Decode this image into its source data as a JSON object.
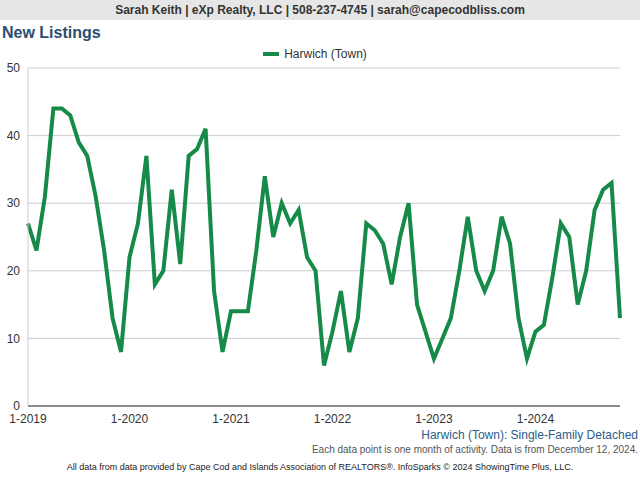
{
  "chart_data": {
    "type": "line",
    "header": "Sarah Keith | eXp Realty, LLC | 508-237-4745 | sarah@capecodbliss.com",
    "title": "New Listings",
    "caption": "Harwich (Town): Single-Family Detached",
    "notes": "Each data point is one month of activity. Data is from December 12, 2024.",
    "footer": "All data from data provided by Cape Cod and Islands Association of REALTORS®. InfoSparks © 2024 ShowingTime Plus, LLC.",
    "categories": [
      "1-2019",
      null,
      null,
      null,
      null,
      null,
      null,
      null,
      null,
      null,
      null,
      null,
      "1-2020",
      null,
      null,
      null,
      null,
      null,
      null,
      null,
      null,
      null,
      null,
      null,
      "1-2021",
      null,
      null,
      null,
      null,
      null,
      null,
      null,
      null,
      null,
      null,
      null,
      "1-2022",
      null,
      null,
      null,
      null,
      null,
      null,
      null,
      null,
      null,
      null,
      null,
      "1-2023",
      null,
      null,
      null,
      null,
      null,
      null,
      null,
      null,
      null,
      null,
      null,
      "1-2024",
      null,
      null,
      null,
      null,
      null,
      null,
      null,
      null,
      null,
      null
    ],
    "series": [
      {
        "name": "Harwich (Town)",
        "color": "#168a48",
        "values": [
          27,
          23,
          31,
          44,
          44,
          43,
          39,
          37,
          31,
          23,
          13,
          8,
          22,
          27,
          37,
          18,
          20,
          32,
          21,
          37,
          38,
          41,
          17,
          8,
          14,
          14,
          14,
          23,
          34,
          25,
          30,
          27,
          29,
          22,
          20,
          6,
          11,
          17,
          8,
          13,
          27,
          26,
          24,
          18,
          25,
          30,
          15,
          11,
          7,
          10,
          13,
          20,
          28,
          20,
          17,
          20,
          28,
          24,
          13,
          7,
          11,
          12,
          19,
          27,
          25,
          15,
          20,
          29,
          32,
          33,
          13
        ]
      }
    ],
    "ylim": [
      0,
      50
    ],
    "yticks": [
      0,
      10,
      20,
      30,
      40,
      50
    ],
    "grid": true,
    "legend": "top"
  }
}
